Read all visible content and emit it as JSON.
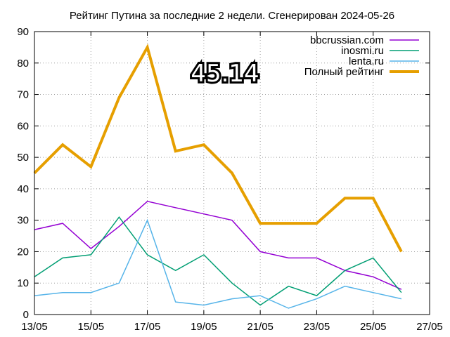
{
  "chart_data": {
    "type": "line",
    "title": "Рейтинг Путина за последние 2 недели. Сгенерирован 2024-05-26",
    "annotation": "45.14",
    "xlabel": "",
    "ylabel": "",
    "ylim": [
      0,
      90
    ],
    "yticks": [
      0,
      10,
      20,
      30,
      40,
      50,
      60,
      70,
      80,
      90
    ],
    "xlim_days": [
      0,
      14
    ],
    "xticks": [
      "13/05",
      "15/05",
      "17/05",
      "19/05",
      "21/05",
      "23/05",
      "25/05",
      "27/05"
    ],
    "grid": true,
    "legend_position": "top-right",
    "x": [
      "13/05",
      "14/05",
      "15/05",
      "16/05",
      "17/05",
      "18/05",
      "19/05",
      "20/05",
      "21/05",
      "22/05",
      "23/05",
      "24/05",
      "25/05",
      "26/05"
    ],
    "series": [
      {
        "name": "bbcrussian.com",
        "color": "#9400d3",
        "width": 1.5,
        "values": [
          27,
          29,
          21,
          28,
          36,
          34,
          32,
          30,
          20,
          18,
          18,
          14,
          12,
          8
        ]
      },
      {
        "name": "inosmi.ru",
        "color": "#009e73",
        "width": 1.5,
        "values": [
          12,
          18,
          19,
          31,
          19,
          14,
          19,
          10,
          3,
          9,
          6,
          14,
          18,
          7
        ]
      },
      {
        "name": "lenta.ru",
        "color": "#56b4e9",
        "width": 1.5,
        "values": [
          6,
          7,
          7,
          10,
          30,
          4,
          3,
          5,
          6,
          2,
          5,
          9,
          7,
          5
        ]
      },
      {
        "name": "Полный рейтинг",
        "color": "#e69f00",
        "width": 4,
        "values": [
          45,
          54,
          47,
          69,
          85,
          52,
          54,
          45,
          29,
          29,
          29,
          37,
          37,
          20
        ]
      }
    ]
  }
}
